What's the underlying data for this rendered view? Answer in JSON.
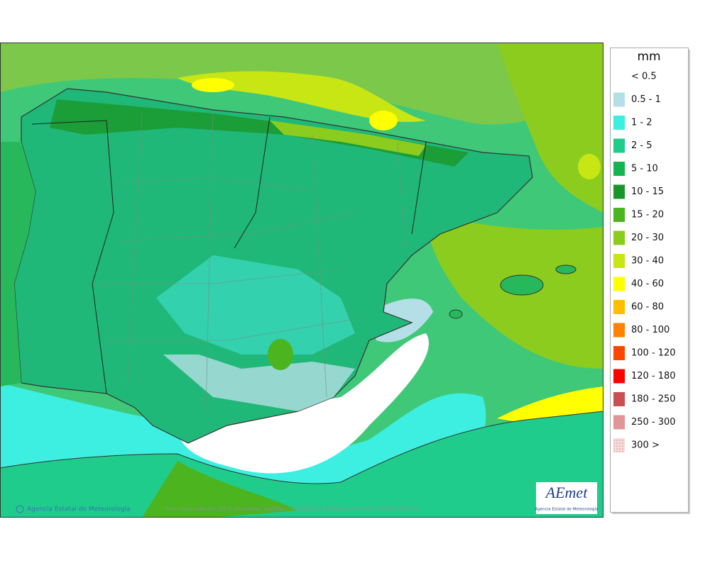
{
  "legend": {
    "title": "mm",
    "items": [
      {
        "label": "< 0.5",
        "color": "#ffffff"
      },
      {
        "label": "0.5 - 1",
        "color": "#b4dfe6"
      },
      {
        "label": "1 - 2",
        "color": "#3cefe0"
      },
      {
        "label": "2 - 5",
        "color": "#20cc8c"
      },
      {
        "label": "5 - 10",
        "color": "#14b450"
      },
      {
        "label": "10 - 15",
        "color": "#1a9628"
      },
      {
        "label": "15 - 20",
        "color": "#4cb41e"
      },
      {
        "label": "20 - 30",
        "color": "#8ccc1e"
      },
      {
        "label": "30 - 40",
        "color": "#c8e614"
      },
      {
        "label": "40 - 60",
        "color": "#ffff00"
      },
      {
        "label": "60 - 80",
        "color": "#ffbe00"
      },
      {
        "label": "80 - 100",
        "color": "#ff8200"
      },
      {
        "label": "100 - 120",
        "color": "#ff4600"
      },
      {
        "label": "120 - 180",
        "color": "#ff0000"
      },
      {
        "label": "180 - 250",
        "color": "#c85050"
      },
      {
        "label": "250 - 300",
        "color": "#e09696"
      },
      {
        "label": "300 >",
        "color": "#f2c8c8"
      }
    ]
  },
  "footer": {
    "agency": "Agencia Estatal de Meteorología",
    "caption": "Precipitación en 24 h máxima. Validez: 20260131 Pasada modelo: 2026012900"
  },
  "logo": {
    "name": "AEmet",
    "subtitle": "Agencia Estatal de Meteorología"
  }
}
